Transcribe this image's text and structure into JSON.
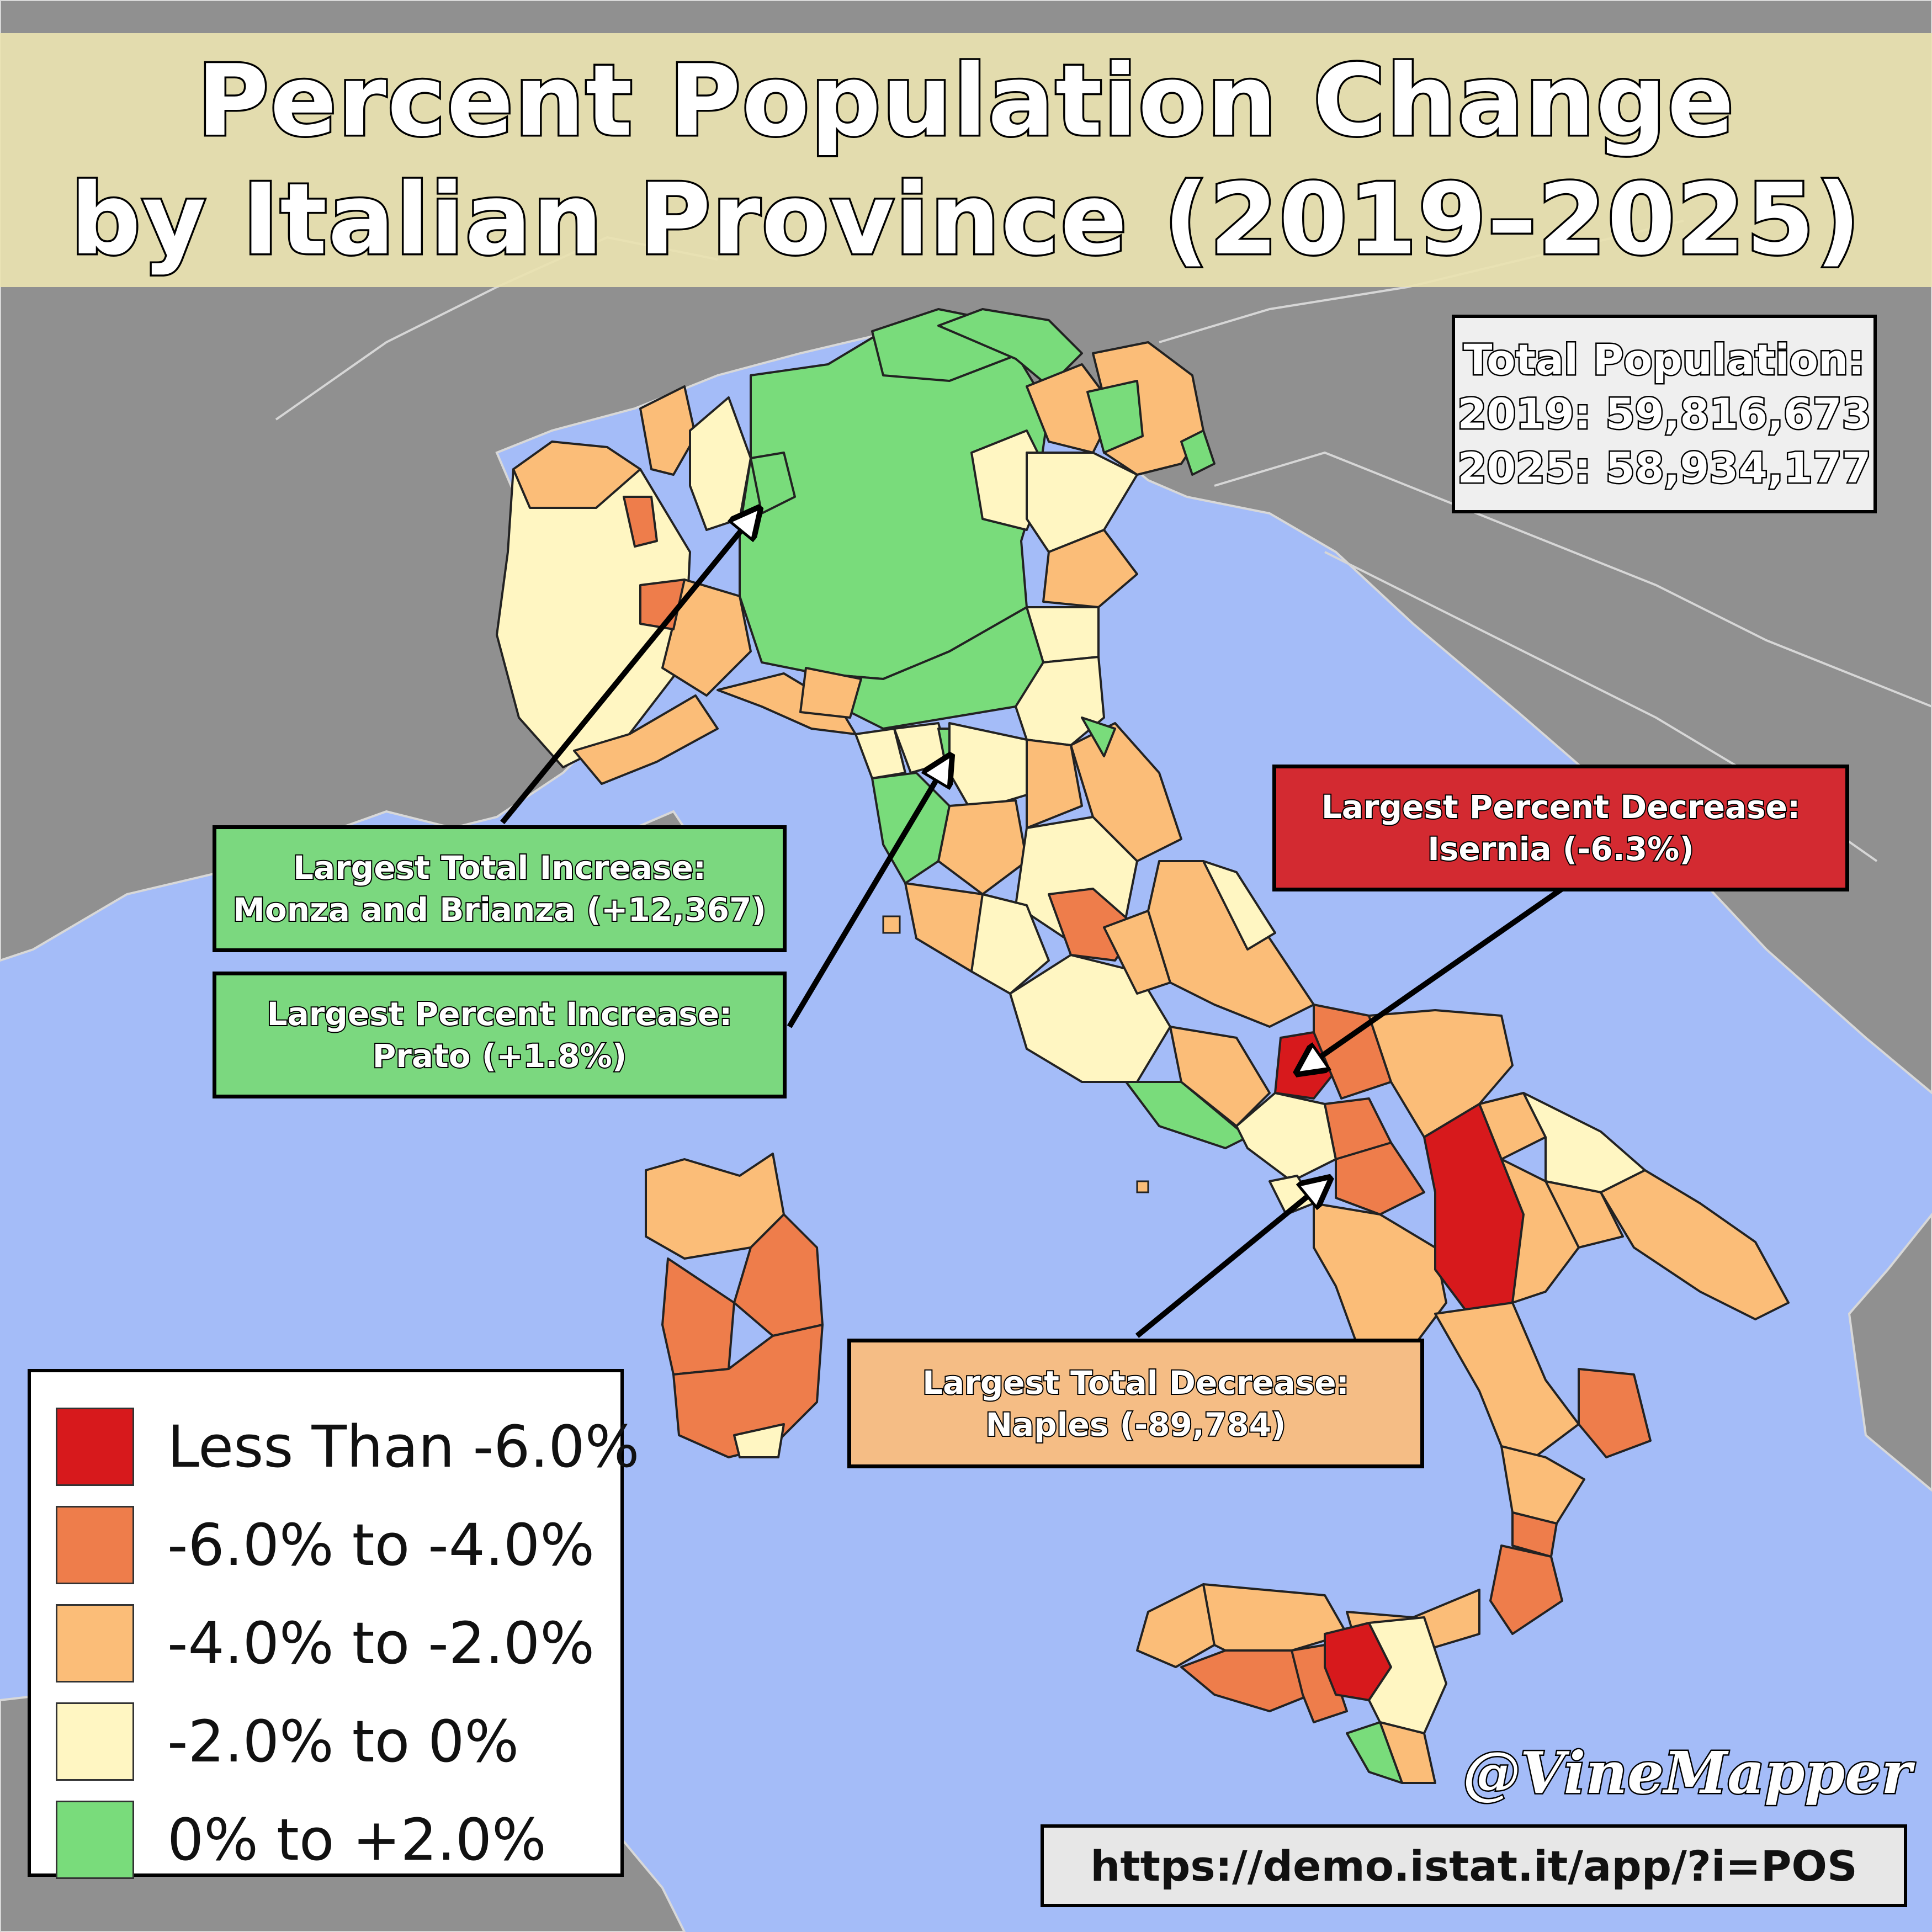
{
  "title": {
    "line1": "Percent Population Change",
    "line2": "by Italian Province (2019–2025)"
  },
  "total_population": {
    "heading": "Total Population:",
    "y2019": "2019: 59,816,673",
    "y2025": "2025: 58,934,177"
  },
  "callouts": {
    "largest_total_increase": {
      "heading": "Largest Total Increase:",
      "value": "Monza and Brianza (+12,367)",
      "color": "#7bd87f"
    },
    "largest_percent_increase": {
      "heading": "Largest Percent Increase:",
      "value": "Prato (+1.8%)",
      "color": "#7bd87f"
    },
    "largest_percent_decrease": {
      "heading": "Largest Percent Decrease:",
      "value": "Isernia (-6.3%)",
      "color": "#d32a31"
    },
    "largest_total_decrease": {
      "heading": "Largest Total Decrease:",
      "value": "Naples (-89,784)",
      "color": "#f5bd85"
    }
  },
  "legend": [
    {
      "label": "Less Than -6.0%",
      "color": "#d7191c"
    },
    {
      "label": "-6.0% to -4.0%",
      "color": "#ee7d4b"
    },
    {
      "label": "-4.0% to -2.0%",
      "color": "#fbbd78"
    },
    {
      "label": "-2.0% to 0%",
      "color": "#fff6c2"
    },
    {
      "label": "0% to +2.0%",
      "color": "#79dc7b"
    }
  ],
  "colors": {
    "sea": "#a4bcf8",
    "land_other": "#909090",
    "title_band": "#e9e2b0"
  },
  "handle": "@VineMapper",
  "source": "https://demo.istat.it/app/?i=POS"
}
